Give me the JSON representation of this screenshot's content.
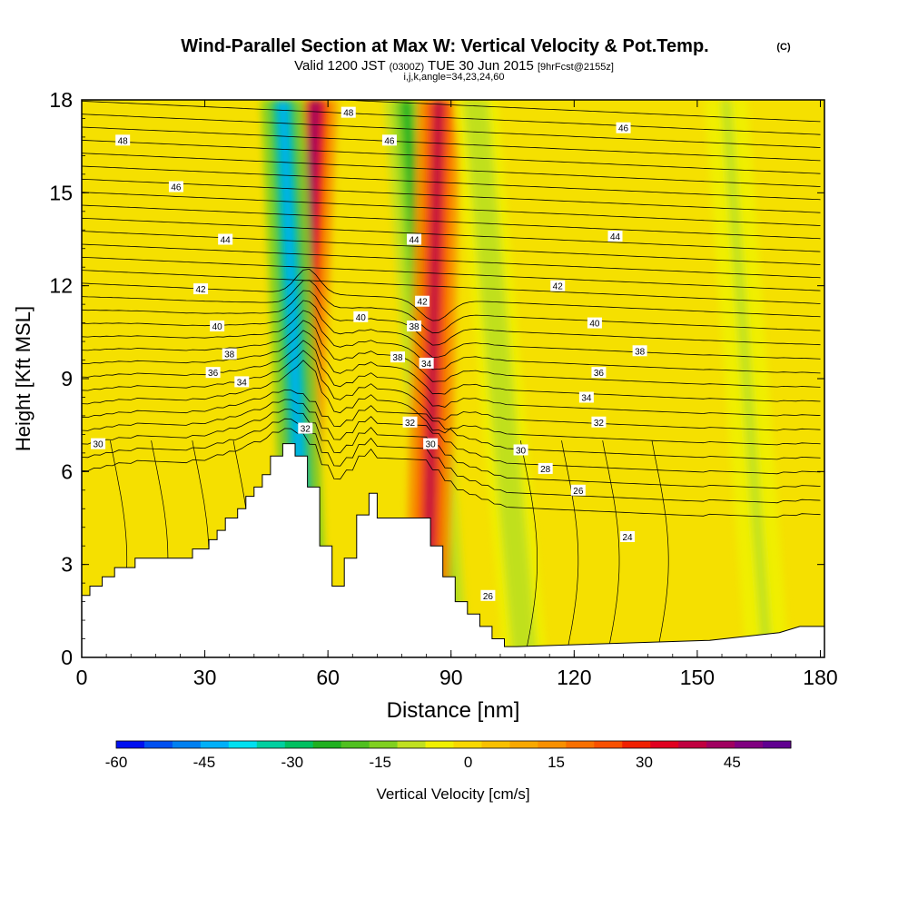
{
  "chart_data": {
    "type": "heatmap",
    "title": "Wind-Parallel Section at Max W: Vertical Velocity & Pot.Temp.",
    "title_mark": "(C)",
    "subtitle": {
      "valid": "Valid 1200 JST",
      "utc": "(0300Z)",
      "date": "TUE 30 Jun 2015",
      "forecast": "[9hrFcst@2155z]"
    },
    "params": "i,j,k,angle=34,23,24,60",
    "xlabel": "Distance [nm]",
    "ylabel": "Height [Kft MSL]",
    "xlim": [
      0,
      181
    ],
    "ylim": [
      0,
      18
    ],
    "x_ticks": [
      "0",
      "30",
      "60",
      "90",
      "120",
      "150",
      "180"
    ],
    "y_ticks": [
      "0",
      "3",
      "6",
      "9",
      "12",
      "15",
      "18"
    ],
    "colorbar": {
      "label": "Vertical Velocity [cm/s]",
      "tick_labels": [
        "-60",
        "-45",
        "-30",
        "-15",
        "0",
        "15",
        "30",
        "45"
      ],
      "min": -60,
      "max": 55,
      "colors": [
        "#0010f0",
        "#0050f0",
        "#0080f0",
        "#00b0f8",
        "#00e0f0",
        "#00d0a0",
        "#00c060",
        "#20b020",
        "#50c020",
        "#80d020",
        "#c0e020",
        "#f0f000",
        "#f8d800",
        "#f8c000",
        "#f8a800",
        "#f89000",
        "#f87000",
        "#f85000",
        "#f02000",
        "#e00020",
        "#c00040",
        "#a00060",
        "#800080",
        "#600090"
      ]
    },
    "terrain": {
      "x": [
        0,
        2,
        2,
        5,
        5,
        8,
        8,
        13,
        13,
        27,
        27,
        31,
        31,
        33,
        33,
        35,
        35,
        38,
        38,
        40,
        40,
        42,
        42,
        44,
        44,
        46,
        46,
        49,
        49,
        52,
        52,
        55,
        55,
        58,
        58,
        61,
        61,
        64,
        64,
        67,
        67,
        70,
        70,
        72,
        72,
        85,
        85,
        88,
        88,
        91,
        91,
        94,
        94,
        97,
        97,
        100,
        100,
        103,
        103,
        106,
        106,
        153,
        153,
        170,
        170,
        175,
        175,
        181
      ],
      "height": [
        2.0,
        2.0,
        2.3,
        2.3,
        2.6,
        2.6,
        2.9,
        2.9,
        3.2,
        3.2,
        3.5,
        3.5,
        3.8,
        3.8,
        4.1,
        4.1,
        4.5,
        4.5,
        4.8,
        4.8,
        5.2,
        5.2,
        5.5,
        5.5,
        5.9,
        5.9,
        6.5,
        6.5,
        6.9,
        6.9,
        6.5,
        6.5,
        5.5,
        5.5,
        3.6,
        3.6,
        2.3,
        2.3,
        3.2,
        3.2,
        4.6,
        4.6,
        5.3,
        5.3,
        4.5,
        4.5,
        3.6,
        3.6,
        2.6,
        2.6,
        1.8,
        1.8,
        1.4,
        1.4,
        1.0,
        1.0,
        0.6,
        0.6,
        0.35,
        0.35,
        0.35,
        0.55,
        0.55,
        0.8,
        0.8,
        1.0,
        1.0,
        1.0
      ]
    },
    "wind_bands": [
      {
        "x_top": 57,
        "x_bottom": 51,
        "value": 45
      },
      {
        "x_top": 49,
        "x_bottom": 55,
        "value": -45
      },
      {
        "x_top": 79,
        "x_bottom": 89,
        "value": -25
      },
      {
        "x_top": 87,
        "x_bottom": 84,
        "value": 40
      },
      {
        "x_top": 96,
        "x_bottom": 108,
        "value": -12
      },
      {
        "x_top": 157,
        "x_bottom": 167,
        "value": -10
      }
    ],
    "contour_labels": [
      {
        "text": "48",
        "x": 10,
        "y": 16.7
      },
      {
        "text": "48",
        "x": 65,
        "y": 17.6
      },
      {
        "text": "46",
        "x": 75,
        "y": 16.7
      },
      {
        "text": "46",
        "x": 132,
        "y": 17.1
      },
      {
        "text": "46",
        "x": 23,
        "y": 15.2
      },
      {
        "text": "44",
        "x": 35,
        "y": 13.5
      },
      {
        "text": "44",
        "x": 81,
        "y": 13.5
      },
      {
        "text": "44",
        "x": 130,
        "y": 13.6
      },
      {
        "text": "42",
        "x": 29,
        "y": 11.9
      },
      {
        "text": "42",
        "x": 83,
        "y": 11.5
      },
      {
        "text": "42",
        "x": 116,
        "y": 12.0
      },
      {
        "text": "40",
        "x": 33,
        "y": 10.7
      },
      {
        "text": "40",
        "x": 68,
        "y": 11.0
      },
      {
        "text": "40",
        "x": 125,
        "y": 10.8
      },
      {
        "text": "38",
        "x": 36,
        "y": 9.8
      },
      {
        "text": "38",
        "x": 81,
        "y": 10.7
      },
      {
        "text": "38",
        "x": 77,
        "y": 9.7
      },
      {
        "text": "38",
        "x": 136,
        "y": 9.9
      },
      {
        "text": "36",
        "x": 32,
        "y": 9.2
      },
      {
        "text": "36",
        "x": 126,
        "y": 9.2
      },
      {
        "text": "34",
        "x": 39,
        "y": 8.9
      },
      {
        "text": "34",
        "x": 84,
        "y": 9.5
      },
      {
        "text": "34",
        "x": 123,
        "y": 8.4
      },
      {
        "text": "32",
        "x": 54.5,
        "y": 7.4
      },
      {
        "text": "32",
        "x": 80,
        "y": 7.6
      },
      {
        "text": "32",
        "x": 126,
        "y": 7.6
      },
      {
        "text": "30",
        "x": 4,
        "y": 6.9
      },
      {
        "text": "30",
        "x": 85,
        "y": 6.9
      },
      {
        "text": "30",
        "x": 107,
        "y": 6.7
      },
      {
        "text": "28",
        "x": 113,
        "y": 6.1
      },
      {
        "text": "26",
        "x": 121,
        "y": 5.4
      },
      {
        "text": "24",
        "x": 133,
        "y": 3.9
      },
      {
        "text": "26",
        "x": 99,
        "y": 2.0
      }
    ]
  }
}
